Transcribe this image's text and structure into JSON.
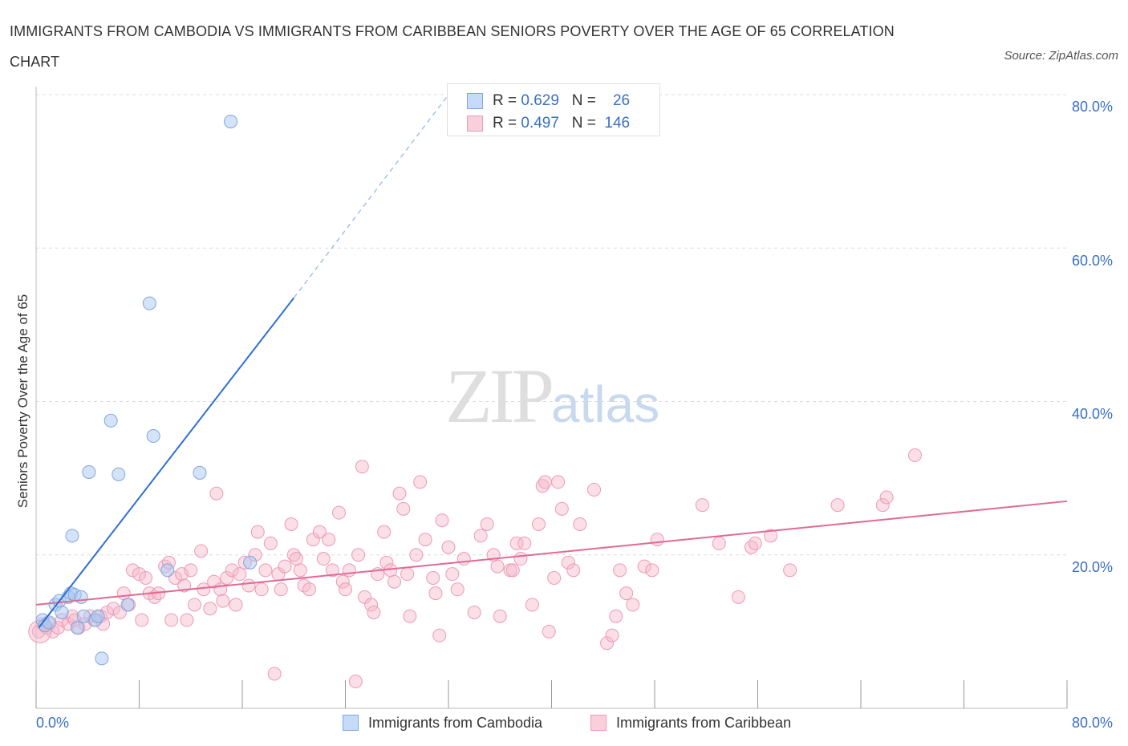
{
  "title": "IMMIGRANTS FROM CAMBODIA VS IMMIGRANTS FROM CARIBBEAN SENIORS POVERTY OVER THE AGE OF 65 CORRELATION CHART",
  "source": "Source: ZipAtlas.com",
  "watermark": {
    "zip": "ZIP",
    "atlas": "atlas"
  },
  "legend_top": [
    {
      "r_label": "R = ",
      "r_value": "0.629",
      "n_label": "N = ",
      "n_value": "26"
    },
    {
      "r_label": "R = ",
      "r_value": "0.497",
      "n_label": "N = ",
      "n_value": "146"
    }
  ],
  "chart_data": {
    "type": "scatter",
    "title": "IMMIGRANTS FROM CAMBODIA VS IMMIGRANTS FROM CARIBBEAN SENIORS POVERTY OVER THE AGE OF 65 CORRELATION CHART",
    "xlabel": "",
    "ylabel": "Seniors Poverty Over the Age of 65",
    "xlim": [
      0,
      80
    ],
    "ylim": [
      0,
      80
    ],
    "x_tick_labels": [
      "0.0%",
      "80.0%"
    ],
    "y_tick_labels": [
      "20.0%",
      "40.0%",
      "60.0%",
      "80.0%"
    ],
    "y_ticks": [
      20,
      40,
      60,
      80
    ],
    "grid": true,
    "legend_placement": "top-center and bottom",
    "colors": {
      "cambodia": "#a9c8f2",
      "cambodia_line": "#2f6fd0",
      "caribbean": "#f5b7c9",
      "caribbean_line": "#e06a93"
    },
    "series": [
      {
        "name": "Immigrants from Cambodia",
        "R": 0.629,
        "N": 26,
        "trend": {
          "x": [
            0.2,
            20.0
          ],
          "y": [
            10.5,
            53.5
          ],
          "dashed_to": [
            32.0,
            80.0
          ]
        },
        "points": [
          [
            0.5,
            11.5
          ],
          [
            0.7,
            10.8
          ],
          [
            1.0,
            11.2
          ],
          [
            1.5,
            13.5
          ],
          [
            1.8,
            14.0
          ],
          [
            2.0,
            12.5
          ],
          [
            2.5,
            14.5
          ],
          [
            2.7,
            15.0
          ],
          [
            2.8,
            22.5
          ],
          [
            3.0,
            14.8
          ],
          [
            3.2,
            10.5
          ],
          [
            3.5,
            14.5
          ],
          [
            4.1,
            30.8
          ],
          [
            4.6,
            11.5
          ],
          [
            4.8,
            12.0
          ],
          [
            5.1,
            6.5
          ],
          [
            5.8,
            37.5
          ],
          [
            6.4,
            30.5
          ],
          [
            7.1,
            13.5
          ],
          [
            8.8,
            52.8
          ],
          [
            9.1,
            35.5
          ],
          [
            10.2,
            18.0
          ],
          [
            12.7,
            30.7
          ],
          [
            15.1,
            76.5
          ],
          [
            16.6,
            19.0
          ],
          [
            3.7,
            12.0
          ]
        ]
      },
      {
        "name": "Immigrants from Caribbean",
        "R": 0.497,
        "N": 146,
        "trend": {
          "x": [
            0,
            80
          ],
          "y": [
            13.5,
            27.0
          ]
        },
        "points": [
          [
            0.2,
            10.0
          ],
          [
            0.5,
            11.0
          ],
          [
            0.8,
            10.5
          ],
          [
            1.0,
            11.0
          ],
          [
            1.3,
            10.0
          ],
          [
            1.7,
            10.5
          ],
          [
            2.0,
            11.5
          ],
          [
            2.5,
            11.0
          ],
          [
            2.8,
            12.0
          ],
          [
            3.0,
            11.5
          ],
          [
            3.3,
            10.5
          ],
          [
            3.8,
            11.0
          ],
          [
            4.2,
            12.0
          ],
          [
            4.5,
            11.5
          ],
          [
            5.0,
            12.0
          ],
          [
            5.2,
            11.0
          ],
          [
            5.5,
            12.5
          ],
          [
            6.0,
            13.0
          ],
          [
            6.5,
            12.5
          ],
          [
            6.8,
            15.0
          ],
          [
            7.2,
            13.5
          ],
          [
            7.5,
            18.0
          ],
          [
            8.0,
            17.5
          ],
          [
            8.2,
            11.5
          ],
          [
            8.5,
            17.0
          ],
          [
            8.8,
            15.0
          ],
          [
            9.2,
            14.5
          ],
          [
            9.5,
            15.0
          ],
          [
            10.0,
            18.5
          ],
          [
            10.3,
            19.0
          ],
          [
            10.5,
            11.5
          ],
          [
            10.8,
            17.0
          ],
          [
            11.3,
            17.5
          ],
          [
            11.5,
            16.0
          ],
          [
            11.7,
            11.5
          ],
          [
            12.0,
            18.0
          ],
          [
            12.3,
            13.5
          ],
          [
            12.8,
            20.5
          ],
          [
            13.0,
            15.5
          ],
          [
            13.5,
            13.0
          ],
          [
            13.8,
            16.5
          ],
          [
            14.0,
            28.0
          ],
          [
            14.3,
            15.5
          ],
          [
            14.5,
            14.0
          ],
          [
            14.8,
            17.0
          ],
          [
            15.2,
            18.0
          ],
          [
            15.5,
            13.5
          ],
          [
            15.8,
            17.5
          ],
          [
            16.2,
            19.0
          ],
          [
            16.5,
            16.0
          ],
          [
            17.0,
            20.0
          ],
          [
            17.2,
            23.0
          ],
          [
            17.5,
            15.5
          ],
          [
            17.8,
            18.0
          ],
          [
            18.2,
            21.5
          ],
          [
            18.5,
            4.5
          ],
          [
            18.8,
            17.5
          ],
          [
            19.0,
            15.5
          ],
          [
            19.3,
            18.5
          ],
          [
            19.8,
            24.0
          ],
          [
            20.0,
            20.0
          ],
          [
            20.2,
            19.5
          ],
          [
            20.5,
            18.0
          ],
          [
            20.8,
            16.0
          ],
          [
            21.2,
            15.5
          ],
          [
            21.5,
            22.0
          ],
          [
            22.0,
            23.0
          ],
          [
            22.3,
            19.5
          ],
          [
            22.7,
            22.0
          ],
          [
            23.0,
            18.0
          ],
          [
            23.5,
            25.5
          ],
          [
            23.8,
            16.5
          ],
          [
            24.0,
            15.5
          ],
          [
            24.3,
            18.0
          ],
          [
            24.8,
            3.5
          ],
          [
            25.0,
            20.0
          ],
          [
            25.3,
            31.5
          ],
          [
            25.5,
            14.5
          ],
          [
            26.0,
            13.5
          ],
          [
            26.2,
            12.5
          ],
          [
            26.5,
            17.5
          ],
          [
            27.0,
            23.0
          ],
          [
            27.2,
            19.0
          ],
          [
            27.5,
            18.0
          ],
          [
            27.8,
            16.5
          ],
          [
            28.2,
            28.0
          ],
          [
            28.5,
            26.0
          ],
          [
            28.8,
            17.5
          ],
          [
            29.0,
            12.0
          ],
          [
            29.5,
            20.0
          ],
          [
            29.8,
            29.5
          ],
          [
            30.2,
            22.0
          ],
          [
            30.8,
            17.0
          ],
          [
            31.0,
            15.0
          ],
          [
            31.3,
            9.5
          ],
          [
            31.5,
            24.5
          ],
          [
            32.0,
            21.0
          ],
          [
            32.3,
            17.5
          ],
          [
            32.7,
            15.5
          ],
          [
            33.2,
            19.5
          ],
          [
            34.0,
            12.5
          ],
          [
            34.5,
            22.5
          ],
          [
            35.0,
            24.0
          ],
          [
            35.5,
            20.0
          ],
          [
            35.8,
            18.5
          ],
          [
            36.0,
            12.0
          ],
          [
            36.8,
            18.0
          ],
          [
            37.0,
            18.0
          ],
          [
            37.3,
            21.5
          ],
          [
            37.6,
            19.5
          ],
          [
            37.9,
            21.5
          ],
          [
            38.5,
            13.5
          ],
          [
            39.0,
            24.0
          ],
          [
            39.3,
            29.0
          ],
          [
            39.5,
            29.5
          ],
          [
            39.8,
            10.0
          ],
          [
            40.2,
            17.0
          ],
          [
            40.5,
            29.5
          ],
          [
            40.8,
            26.0
          ],
          [
            41.3,
            19.0
          ],
          [
            41.7,
            18.0
          ],
          [
            42.2,
            24.0
          ],
          [
            43.3,
            28.5
          ],
          [
            44.3,
            8.5
          ],
          [
            44.7,
            9.5
          ],
          [
            45.0,
            12.0
          ],
          [
            45.3,
            18.0
          ],
          [
            45.8,
            15.0
          ],
          [
            46.3,
            13.5
          ],
          [
            47.2,
            18.5
          ],
          [
            47.8,
            18.0
          ],
          [
            48.2,
            22.0
          ],
          [
            51.7,
            26.5
          ],
          [
            54.5,
            14.5
          ],
          [
            55.5,
            21.0
          ],
          [
            55.8,
            21.5
          ],
          [
            57.0,
            22.5
          ],
          [
            58.5,
            18.0
          ],
          [
            62.2,
            26.5
          ],
          [
            65.7,
            26.5
          ],
          [
            66.0,
            27.5
          ],
          [
            68.2,
            33.0
          ],
          [
            53.0,
            21.5
          ]
        ]
      }
    ]
  },
  "legend_bottom": [
    "Immigrants from Cambodia",
    "Immigrants from Caribbean"
  ]
}
